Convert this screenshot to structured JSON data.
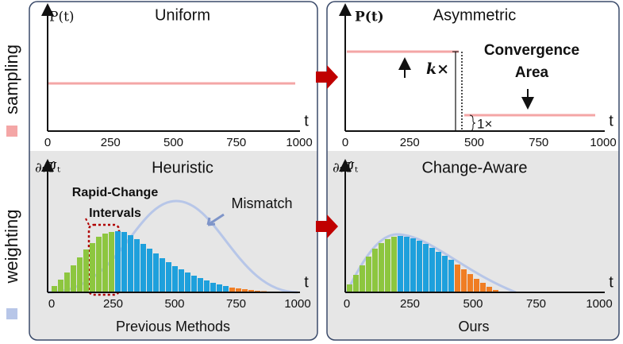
{
  "side_labels": {
    "top": "sampling",
    "bottom": "weighting"
  },
  "panels": {
    "top_left": {
      "title": "Uniform",
      "y_label": "P(t)",
      "x_label": "t",
      "xticks": [
        0,
        250,
        500,
        750,
        1000
      ]
    },
    "top_right": {
      "title": "Asymmetric",
      "y_label": "P(t)",
      "x_label": "t",
      "xticks": [
        0,
        250,
        500,
        750,
        1000
      ],
      "k_label": "k×",
      "one_label": "1×",
      "annotation": [
        "Convergence",
        "Area"
      ]
    },
    "bottom_left": {
      "title": "Heuristic",
      "y_label": "∂ₜΨ̂ₜ",
      "x_label": "t",
      "xticks": [
        0,
        250,
        500,
        750,
        1000
      ],
      "annotation": [
        "Rapid-Change",
        "Intervals"
      ],
      "mismatch": "Mismatch",
      "caption": "Previous Methods",
      "bars": [
        8,
        16,
        25,
        34,
        44,
        54,
        62,
        70,
        74,
        76,
        77,
        76,
        72,
        67,
        61,
        55,
        49,
        43,
        38,
        33,
        29,
        25,
        21,
        18,
        15,
        12,
        10,
        8,
        6,
        5,
        4,
        3,
        2,
        1.5,
        1,
        0.5,
        0.3
      ],
      "bar_colors": [
        "#8dc63f",
        "#8dc63f",
        "#8dc63f",
        "#8dc63f",
        "#8dc63f",
        "#8dc63f",
        "#8dc63f",
        "#8dc63f",
        "#8dc63f",
        "#8dc63f",
        "#1ea0dc",
        "#1ea0dc",
        "#1ea0dc",
        "#1ea0dc",
        "#1ea0dc",
        "#1ea0dc",
        "#1ea0dc",
        "#1ea0dc",
        "#1ea0dc",
        "#1ea0dc",
        "#1ea0dc",
        "#1ea0dc",
        "#1ea0dc",
        "#1ea0dc",
        "#1ea0dc",
        "#1ea0dc",
        "#1ea0dc",
        "#1ea0dc",
        "#f07d23",
        "#f07d23",
        "#f07d23",
        "#f07d23",
        "#f07d23",
        "#f07d23",
        "#f07d23",
        "#f07d23",
        "#f07d23"
      ]
    },
    "bottom_right": {
      "title": "Change-Aware",
      "y_label": "∂ₜΨ̂ₜ",
      "x_label": "t",
      "xticks": [
        0,
        250,
        500,
        750,
        1000
      ],
      "caption": "Ours",
      "bars": [
        10,
        22,
        34,
        45,
        55,
        62,
        67,
        70,
        71,
        70,
        68,
        65,
        61,
        56,
        51,
        46,
        41,
        35,
        29,
        23,
        17,
        12,
        7,
        3
      ],
      "bar_colors": [
        "#8dc63f",
        "#8dc63f",
        "#8dc63f",
        "#8dc63f",
        "#8dc63f",
        "#8dc63f",
        "#8dc63f",
        "#8dc63f",
        "#1ea0dc",
        "#1ea0dc",
        "#1ea0dc",
        "#1ea0dc",
        "#1ea0dc",
        "#1ea0dc",
        "#1ea0dc",
        "#1ea0dc",
        "#1ea0dc",
        "#f07d23",
        "#f07d23",
        "#f07d23",
        "#f07d23",
        "#f07d23",
        "#f07d23",
        "#f07d23"
      ]
    }
  }
}
